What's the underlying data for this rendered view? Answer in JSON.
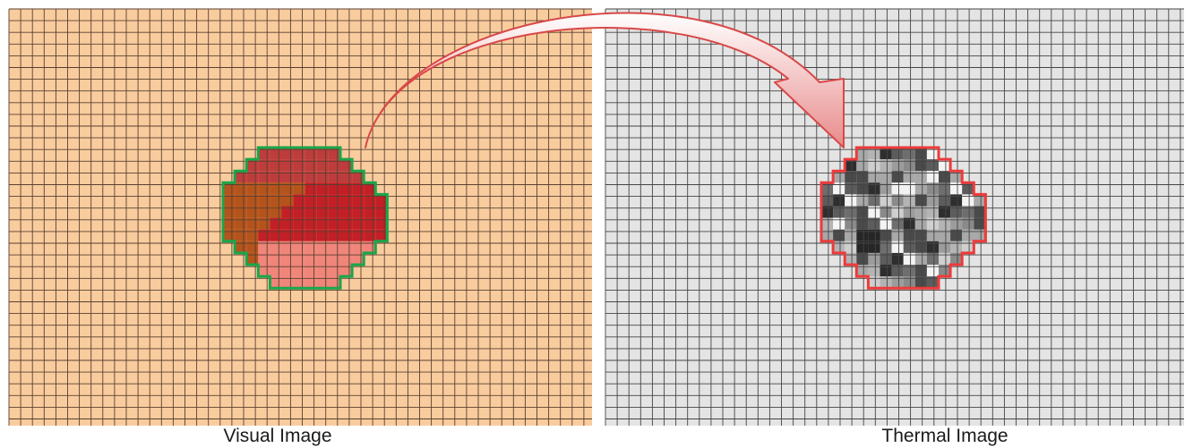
{
  "captions": {
    "visual": "Visual Image",
    "thermal": "Thermal Image"
  },
  "colors": {
    "visual_background": "#f9cc9e",
    "thermal_background": "#e4e4e4",
    "grid_line_visual": "#5a4030",
    "grid_line_thermal": "#454545",
    "visual_region_outline": "#1aa64a",
    "thermal_region_outline": "#ee3a3a",
    "arrow_fill_top": "#ffffff",
    "arrow_fill_bottom": "#e88a8a",
    "arrow_outline": "#d84848",
    "region_dark_red": "#be3c3c",
    "region_red": "#c21f26",
    "region_brown": "#b4541c",
    "region_pink": "#f0857a"
  }
}
